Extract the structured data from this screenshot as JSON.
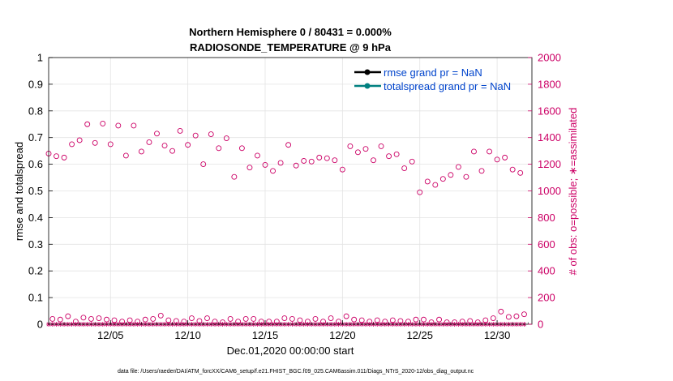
{
  "chart_data": {
    "type": "scatter",
    "title": "Northern Hemisphere 0 / 80431 = 0.000%",
    "subtitle": "RADIOSONDE_TEMPERATURE @ 9 hPa",
    "xlabel": "Dec.01,2020 00:00:00 start",
    "ylabel_left": "rmse and totalspread",
    "ylabel_right": "# of obs: o=possible; ∗=assimilated",
    "xlim": [
      "2020-12-01 00:00",
      "2021-01-01 06:00"
    ],
    "ylim_left": [
      0,
      1
    ],
    "ylim_right": [
      0,
      2000
    ],
    "x_ticks": [
      "12/05",
      "12/10",
      "12/15",
      "12/20",
      "12/25",
      "12/30"
    ],
    "x_tick_dates": [
      "2020-12-05",
      "2020-12-10",
      "2020-12-15",
      "2020-12-20",
      "2020-12-25",
      "2020-12-30"
    ],
    "y_ticks_left": [
      "0",
      "0.1",
      "0.2",
      "0.3",
      "0.4",
      "0.5",
      "0.6",
      "0.7",
      "0.8",
      "0.9",
      "1"
    ],
    "y_ticks_right": [
      "0",
      "200",
      "400",
      "600",
      "800",
      "1000",
      "1200",
      "1400",
      "1600",
      "1800",
      "2000"
    ],
    "grid": true,
    "legend_position": "top-right",
    "series": [
      {
        "name": "rmse grand pr = NaN",
        "color": "#000000",
        "marker": "filled-circle",
        "values": []
      },
      {
        "name": "totalspread grand pr = NaN",
        "color": "#008080",
        "marker": "filled-circle",
        "values": []
      }
    ],
    "obs_possible": {
      "color": "#cc0066",
      "marker": "open-circle",
      "points": [
        [
          "2020-12-01 00:00",
          1280
        ],
        [
          "2020-12-01 06:00",
          40
        ],
        [
          "2020-12-01 12:00",
          1260
        ],
        [
          "2020-12-01 18:00",
          35
        ],
        [
          "2020-12-02 00:00",
          1250
        ],
        [
          "2020-12-02 06:00",
          60
        ],
        [
          "2020-12-02 12:00",
          1350
        ],
        [
          "2020-12-02 18:00",
          20
        ],
        [
          "2020-12-03 00:00",
          1380
        ],
        [
          "2020-12-03 06:00",
          50
        ],
        [
          "2020-12-03 12:00",
          1500
        ],
        [
          "2020-12-03 18:00",
          40
        ],
        [
          "2020-12-04 00:00",
          1360
        ],
        [
          "2020-12-04 06:00",
          45
        ],
        [
          "2020-12-04 12:00",
          1505
        ],
        [
          "2020-12-04 18:00",
          35
        ],
        [
          "2020-12-05 00:00",
          1350
        ],
        [
          "2020-12-05 06:00",
          30
        ],
        [
          "2020-12-05 12:00",
          1490
        ],
        [
          "2020-12-05 18:00",
          20
        ],
        [
          "2020-12-06 00:00",
          1265
        ],
        [
          "2020-12-06 06:00",
          30
        ],
        [
          "2020-12-06 12:00",
          1490
        ],
        [
          "2020-12-06 18:00",
          20
        ],
        [
          "2020-12-07 00:00",
          1295
        ],
        [
          "2020-12-07 06:00",
          35
        ],
        [
          "2020-12-07 12:00",
          1365
        ],
        [
          "2020-12-07 18:00",
          40
        ],
        [
          "2020-12-08 00:00",
          1430
        ],
        [
          "2020-12-08 06:00",
          65
        ],
        [
          "2020-12-08 12:00",
          1340
        ],
        [
          "2020-12-08 18:00",
          30
        ],
        [
          "2020-12-09 00:00",
          1300
        ],
        [
          "2020-12-09 06:00",
          25
        ],
        [
          "2020-12-09 12:00",
          1450
        ],
        [
          "2020-12-09 18:00",
          20
        ],
        [
          "2020-12-10 00:00",
          1345
        ],
        [
          "2020-12-10 06:00",
          45
        ],
        [
          "2020-12-10 12:00",
          1415
        ],
        [
          "2020-12-10 18:00",
          25
        ],
        [
          "2020-12-11 00:00",
          1200
        ],
        [
          "2020-12-11 06:00",
          45
        ],
        [
          "2020-12-11 12:00",
          1425
        ],
        [
          "2020-12-11 18:00",
          20
        ],
        [
          "2020-12-12 00:00",
          1320
        ],
        [
          "2020-12-12 06:00",
          15
        ],
        [
          "2020-12-12 12:00",
          1395
        ],
        [
          "2020-12-12 18:00",
          40
        ],
        [
          "2020-12-13 00:00",
          1105
        ],
        [
          "2020-12-13 06:00",
          20
        ],
        [
          "2020-12-13 12:00",
          1320
        ],
        [
          "2020-12-13 18:00",
          40
        ],
        [
          "2020-12-14 00:00",
          1175
        ],
        [
          "2020-12-14 06:00",
          40
        ],
        [
          "2020-12-14 12:00",
          1265
        ],
        [
          "2020-12-14 18:00",
          20
        ],
        [
          "2020-12-15 00:00",
          1195
        ],
        [
          "2020-12-15 06:00",
          20
        ],
        [
          "2020-12-15 12:00",
          1150
        ],
        [
          "2020-12-15 18:00",
          20
        ],
        [
          "2020-12-16 00:00",
          1210
        ],
        [
          "2020-12-16 06:00",
          45
        ],
        [
          "2020-12-16 12:00",
          1345
        ],
        [
          "2020-12-16 18:00",
          40
        ],
        [
          "2020-12-17 00:00",
          1190
        ],
        [
          "2020-12-17 06:00",
          30
        ],
        [
          "2020-12-17 12:00",
          1225
        ],
        [
          "2020-12-17 18:00",
          20
        ],
        [
          "2020-12-18 00:00",
          1220
        ],
        [
          "2020-12-18 06:00",
          40
        ],
        [
          "2020-12-18 12:00",
          1250
        ],
        [
          "2020-12-18 18:00",
          20
        ],
        [
          "2020-12-19 00:00",
          1245
        ],
        [
          "2020-12-19 06:00",
          45
        ],
        [
          "2020-12-19 12:00",
          1230
        ],
        [
          "2020-12-19 18:00",
          20
        ],
        [
          "2020-12-20 00:00",
          1160
        ],
        [
          "2020-12-20 06:00",
          60
        ],
        [
          "2020-12-20 12:00",
          1335
        ],
        [
          "2020-12-20 18:00",
          35
        ],
        [
          "2020-12-21 00:00",
          1290
        ],
        [
          "2020-12-21 06:00",
          30
        ],
        [
          "2020-12-21 12:00",
          1315
        ],
        [
          "2020-12-21 18:00",
          20
        ],
        [
          "2020-12-22 00:00",
          1230
        ],
        [
          "2020-12-22 06:00",
          30
        ],
        [
          "2020-12-22 12:00",
          1335
        ],
        [
          "2020-12-22 18:00",
          20
        ],
        [
          "2020-12-23 00:00",
          1260
        ],
        [
          "2020-12-23 06:00",
          30
        ],
        [
          "2020-12-23 12:00",
          1275
        ],
        [
          "2020-12-23 18:00",
          25
        ],
        [
          "2020-12-24 00:00",
          1170
        ],
        [
          "2020-12-24 06:00",
          20
        ],
        [
          "2020-12-24 12:00",
          1220
        ],
        [
          "2020-12-24 18:00",
          35
        ],
        [
          "2020-12-25 00:00",
          990
        ],
        [
          "2020-12-25 06:00",
          35
        ],
        [
          "2020-12-25 12:00",
          1070
        ],
        [
          "2020-12-25 18:00",
          15
        ],
        [
          "2020-12-26 00:00",
          1045
        ],
        [
          "2020-12-26 06:00",
          35
        ],
        [
          "2020-12-26 12:00",
          1090
        ],
        [
          "2020-12-26 18:00",
          15
        ],
        [
          "2020-12-27 00:00",
          1120
        ],
        [
          "2020-12-27 06:00",
          15
        ],
        [
          "2020-12-27 12:00",
          1180
        ],
        [
          "2020-12-27 18:00",
          20
        ],
        [
          "2020-12-28 00:00",
          1105
        ],
        [
          "2020-12-28 06:00",
          25
        ],
        [
          "2020-12-28 12:00",
          1295
        ],
        [
          "2020-12-28 18:00",
          15
        ],
        [
          "2020-12-29 00:00",
          1150
        ],
        [
          "2020-12-29 06:00",
          30
        ],
        [
          "2020-12-29 12:00",
          1295
        ],
        [
          "2020-12-29 18:00",
          45
        ],
        [
          "2020-12-30 00:00",
          1235
        ],
        [
          "2020-12-30 06:00",
          95
        ],
        [
          "2020-12-30 12:00",
          1250
        ],
        [
          "2020-12-30 18:00",
          55
        ],
        [
          "2020-12-31 00:00",
          1160
        ],
        [
          "2020-12-31 06:00",
          60
        ],
        [
          "2020-12-31 12:00",
          1135
        ],
        [
          "2020-12-31 18:00",
          75
        ]
      ]
    },
    "obs_assimilated": {
      "color": "#cc0066",
      "marker": "asterisk",
      "value": 0
    }
  },
  "footer_note": "data file: /Users/raeder/DAI/ATM_forcXX/CAM6_setup/f.e21.FHIST_BGC.f09_025.CAM6assim.011/Diags_NTrS_2020-12/obs_diag_output.nc"
}
